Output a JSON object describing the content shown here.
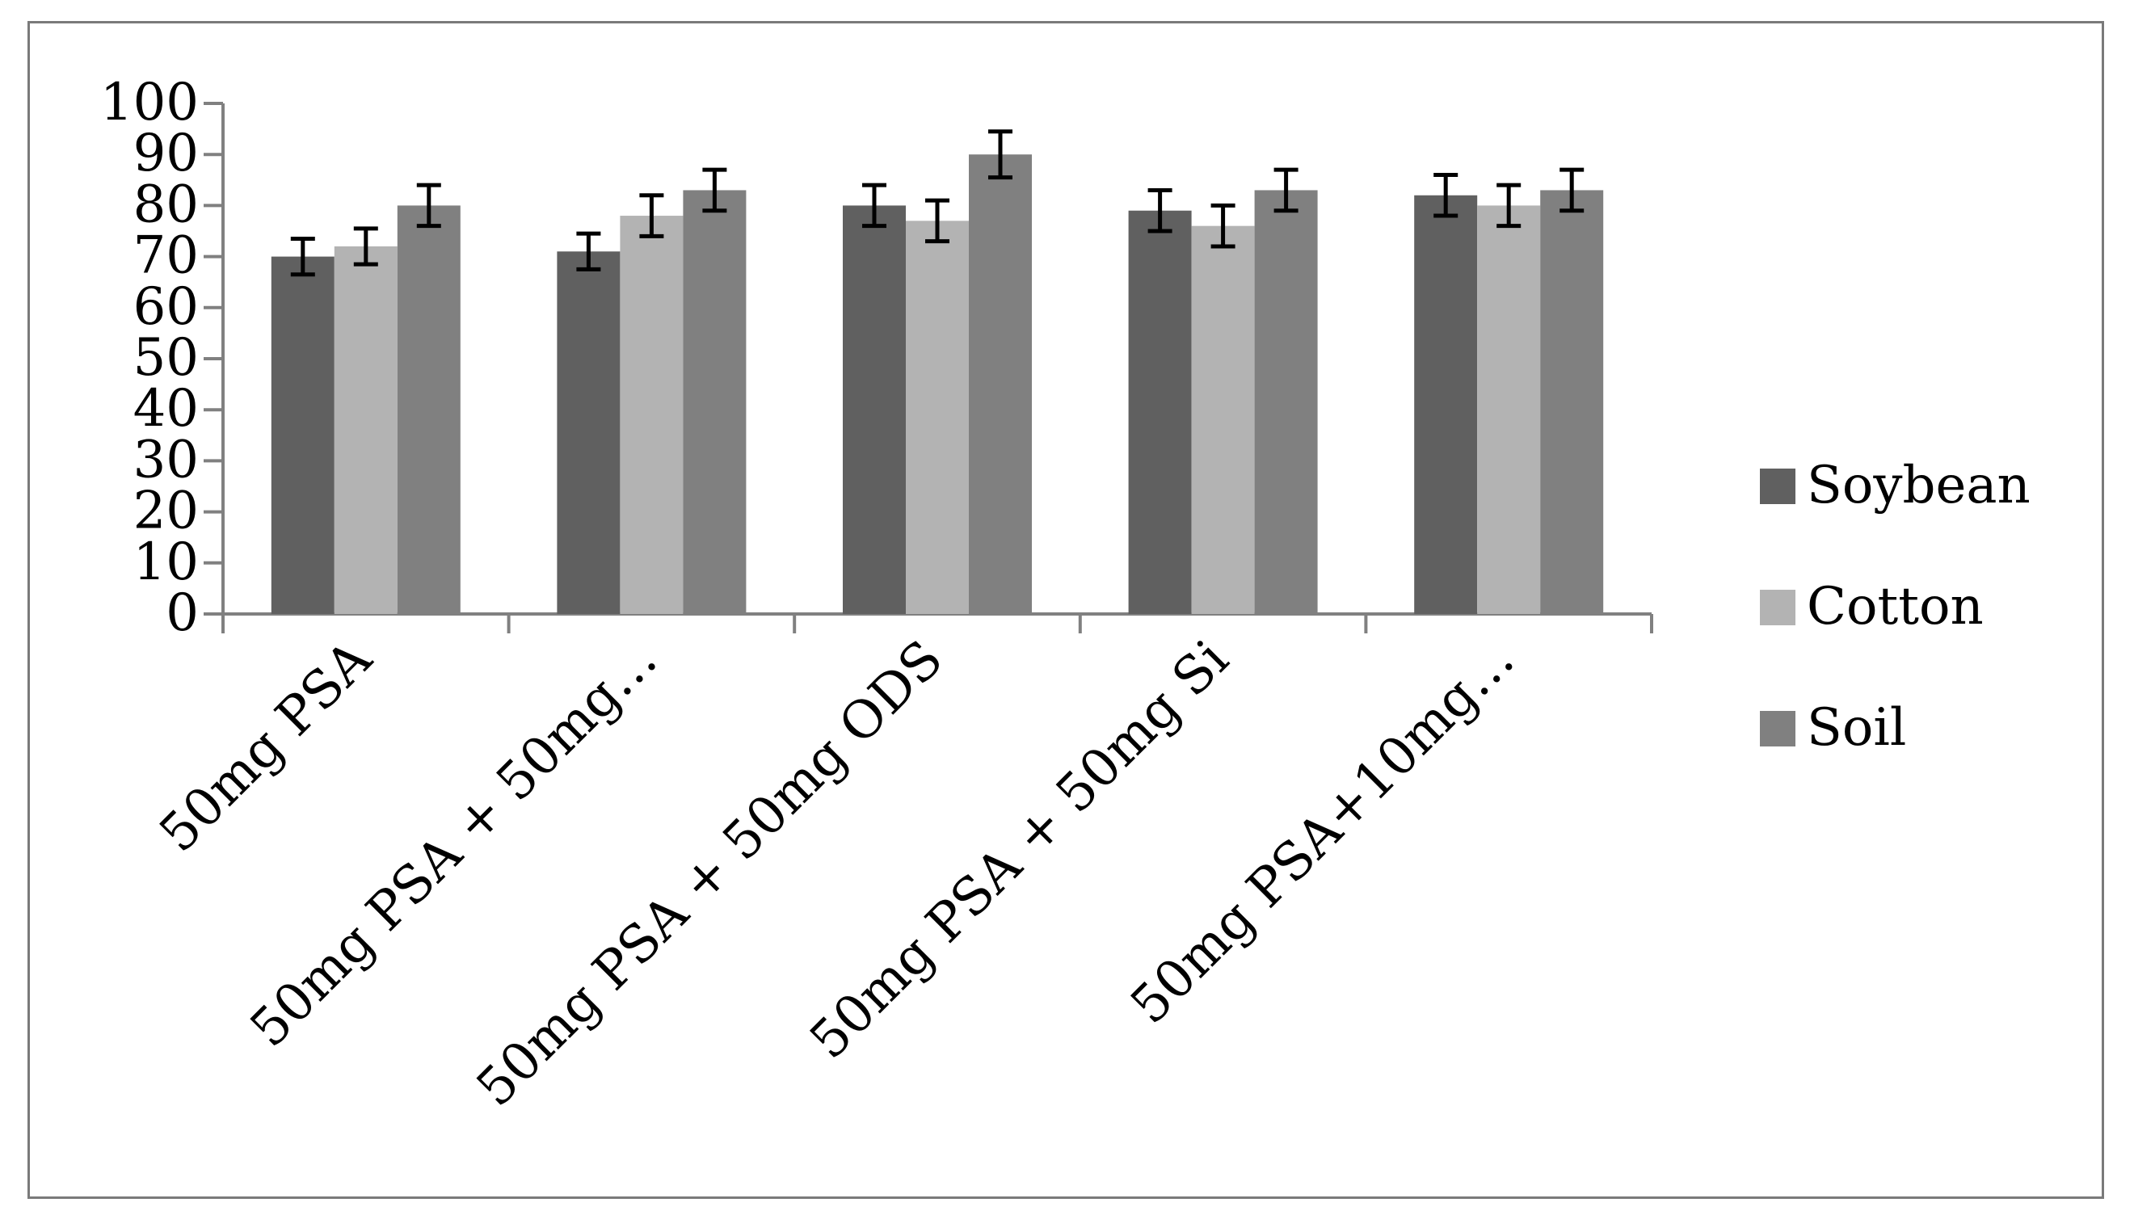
{
  "chart_data": {
    "type": "bar",
    "title": "",
    "xlabel": "",
    "ylabel": "",
    "ylim": [
      0,
      100
    ],
    "yticks": [
      0,
      10,
      20,
      30,
      40,
      50,
      60,
      70,
      80,
      90,
      100
    ],
    "categories": [
      "50mg PSA",
      "50mg PSA + 50mg…",
      "50mg PSA + 50mg ODS",
      "50mg PSA + 50mg Si",
      "50mg PSA+10mg…"
    ],
    "series": [
      {
        "name": "Soybean",
        "color": "#606060",
        "values": [
          70,
          71,
          80,
          79,
          82
        ],
        "errors": [
          3.5,
          3.5,
          4,
          4,
          4
        ]
      },
      {
        "name": "Cotton",
        "color": "#b3b3b3",
        "values": [
          72,
          78,
          77,
          76,
          80
        ],
        "errors": [
          3.5,
          4,
          4,
          4,
          4
        ]
      },
      {
        "name": "Soil",
        "color": "#808080",
        "values": [
          80,
          83,
          90,
          83,
          83
        ],
        "errors": [
          4,
          4,
          4.5,
          4,
          4
        ]
      }
    ],
    "legend": {
      "position": "right"
    },
    "grid": false
  }
}
